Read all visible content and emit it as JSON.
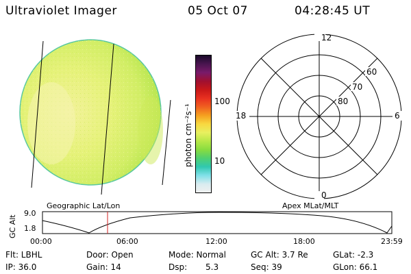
{
  "header": {
    "title": "Ultraviolet Imager",
    "date": "05 Oct 07",
    "time": "04:28:45 UT"
  },
  "colorbar": {
    "unit_label": "photon cm⁻²s⁻¹",
    "ticks": [
      "100",
      "10"
    ],
    "colors": [
      "#1a0a2a",
      "#4a1550",
      "#7a1a6a",
      "#a01030",
      "#c81818",
      "#e83020",
      "#f06020",
      "#f5a020",
      "#f8d840",
      "#e8f060",
      "#b8e848",
      "#88dc40",
      "#50d070",
      "#30c8b0",
      "#80e0e8",
      "#d8ecf0",
      "#f0f0f0"
    ]
  },
  "polar_plot": {
    "hour_labels": {
      "top": "12",
      "left": "18",
      "right": "6",
      "bottom": "0"
    },
    "lat_labels": [
      "60",
      "70",
      "80"
    ]
  },
  "panel_labels": {
    "left": "Geographic Lat/Lon",
    "right": "Apex MLat/MLT"
  },
  "altitude_plot": {
    "axis_title": "GC Alt",
    "y_ticks": [
      "9.0",
      "1.8"
    ],
    "x_ticks": [
      "00:00",
      "06:00",
      "12:00",
      "18:00",
      "23:59"
    ],
    "current_time_marker": "04:28:45"
  },
  "info": {
    "flt": "Flt: LBHL",
    "door": "Door: Open",
    "mode": "Mode: Normal",
    "gc_alt": "GC Alt: 3.7 Re",
    "glat": "GLat:  -2.3",
    "ip": "IP: 36.0",
    "gain": "Gain: 14",
    "dsp": "Dsp:",
    "dsp_val": "5.3",
    "seq": "Seq: 39",
    "glon": "GLon:  66.1"
  }
}
